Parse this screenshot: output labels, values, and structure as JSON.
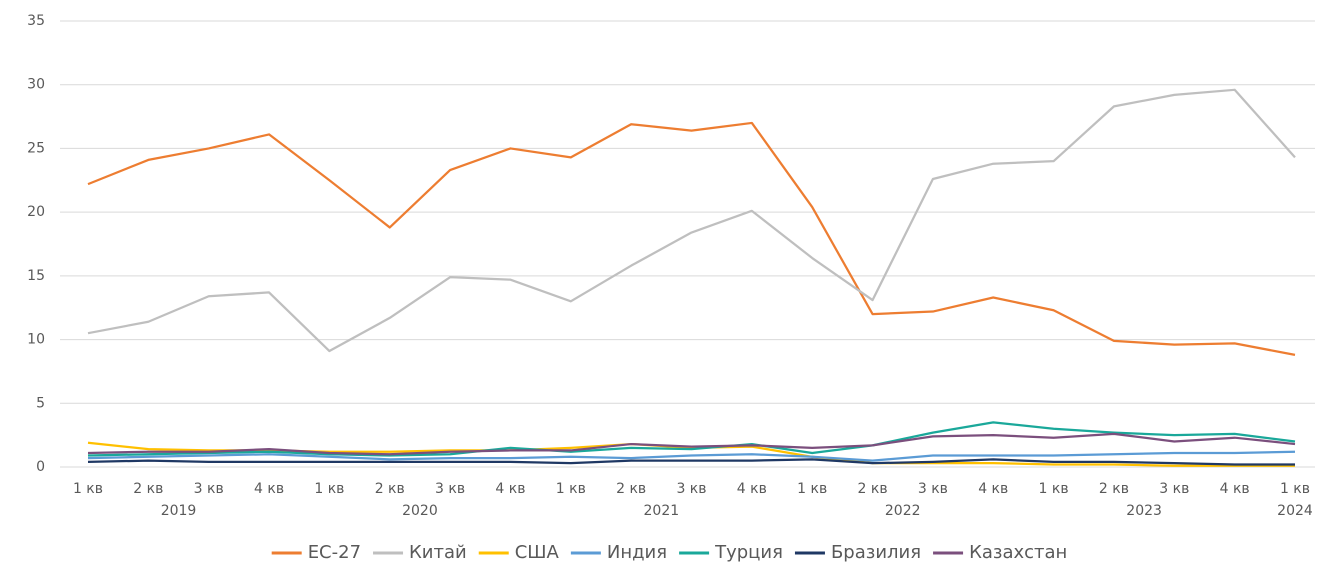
{
  "chart_data": {
    "type": "line",
    "categories": [
      "1 кв",
      "2 кв",
      "3 кв",
      "4 кв",
      "1 кв",
      "2 кв",
      "3 кв",
      "4 кв",
      "1 кв",
      "2 кв",
      "3 кв",
      "4 кв",
      "1 кв",
      "2 кв",
      "3 кв",
      "4 кв",
      "1 кв",
      "2 кв",
      "3 кв",
      "4 кв",
      "1 кв"
    ],
    "years": [
      "2019",
      "2020",
      "2021",
      "2022",
      "2023",
      "2024"
    ],
    "ylim": [
      0,
      35
    ],
    "yticks": [
      0,
      5,
      10,
      15,
      20,
      25,
      30,
      35
    ],
    "grid": true,
    "legend": "bottom",
    "series": [
      {
        "name": "ЕС-27",
        "color": "#ED7D31",
        "values": [
          22.2,
          24.1,
          25.0,
          26.1,
          22.5,
          18.8,
          23.3,
          25.0,
          24.3,
          26.9,
          26.4,
          27.0,
          20.4,
          12.0,
          12.2,
          13.3,
          12.3,
          9.9,
          9.6,
          9.7,
          8.8
        ]
      },
      {
        "name": "Китай",
        "color": "#BFBFBF",
        "values": [
          10.5,
          11.4,
          13.4,
          13.7,
          9.1,
          11.7,
          14.9,
          14.7,
          13.0,
          15.8,
          18.4,
          20.1,
          16.4,
          13.1,
          22.6,
          23.8,
          24.0,
          28.3,
          29.2,
          29.6,
          24.3
        ]
      },
      {
        "name": "США",
        "color": "#FFC000",
        "values": [
          1.9,
          1.4,
          1.3,
          1.3,
          1.2,
          1.2,
          1.3,
          1.3,
          1.5,
          1.8,
          1.5,
          1.6,
          0.8,
          0.3,
          0.3,
          0.3,
          0.2,
          0.2,
          0.1,
          0.1,
          0.1
        ]
      },
      {
        "name": "Индия",
        "color": "#5B9BD5",
        "values": [
          0.7,
          0.8,
          0.9,
          1.0,
          0.8,
          0.6,
          0.7,
          0.7,
          0.8,
          0.7,
          0.9,
          1.0,
          0.8,
          0.5,
          0.9,
          0.9,
          0.9,
          1.0,
          1.1,
          1.1,
          1.2
        ]
      },
      {
        "name": "Турция",
        "color": "#1AA89A",
        "values": [
          0.9,
          1.0,
          1.1,
          1.2,
          1.0,
          0.9,
          1.0,
          1.5,
          1.2,
          1.5,
          1.4,
          1.8,
          1.1,
          1.7,
          2.7,
          3.5,
          3.0,
          2.7,
          2.5,
          2.6,
          2.0
        ]
      },
      {
        "name": "Бразилия",
        "color": "#1F3864",
        "values": [
          0.4,
          0.5,
          0.4,
          0.4,
          0.4,
          0.4,
          0.4,
          0.4,
          0.3,
          0.5,
          0.5,
          0.5,
          0.6,
          0.3,
          0.4,
          0.6,
          0.4,
          0.4,
          0.3,
          0.2,
          0.2
        ]
      },
      {
        "name": "Казахстан",
        "color": "#7B4F7D",
        "values": [
          1.1,
          1.2,
          1.2,
          1.4,
          1.1,
          1.0,
          1.2,
          1.3,
          1.3,
          1.8,
          1.6,
          1.7,
          1.5,
          1.7,
          2.4,
          2.5,
          2.3,
          2.6,
          2.0,
          2.3,
          1.8
        ]
      }
    ]
  }
}
